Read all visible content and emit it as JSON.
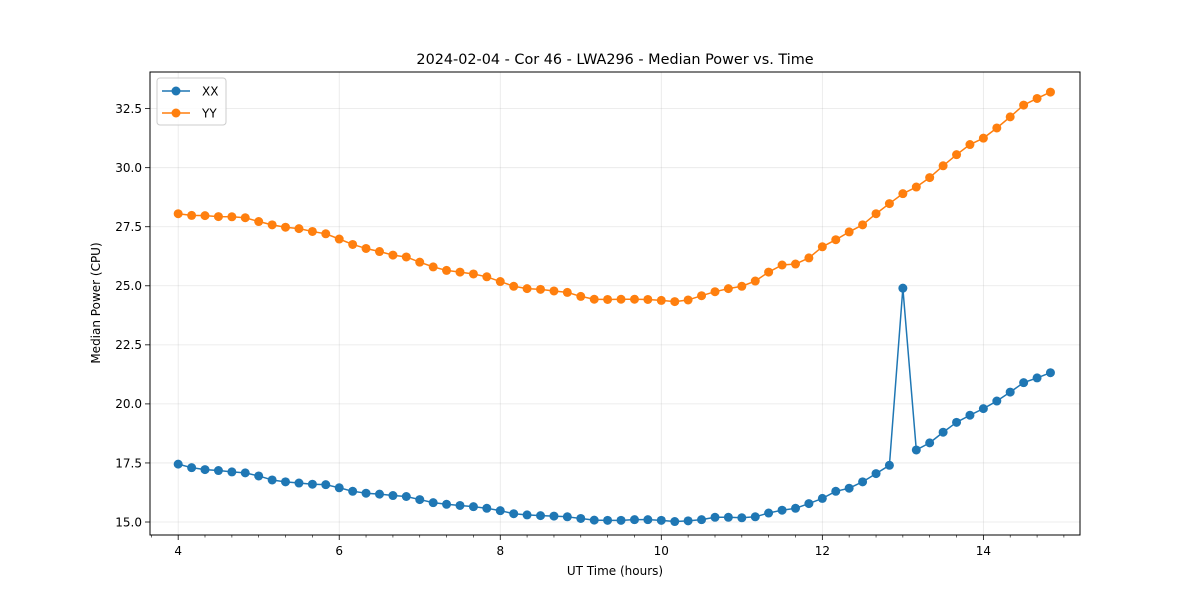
{
  "chart_data": {
    "type": "line",
    "title": "2024-02-04 - Cor 46 - LWA296 - Median Power vs. Time",
    "xlabel": "UT Time (hours)",
    "ylabel": "Median Power (CPU)",
    "xlim": [
      3.65,
      15.2
    ],
    "ylim": [
      14.45,
      34.05
    ],
    "x_ticks": [
      4,
      6,
      8,
      10,
      12,
      14
    ],
    "x_tick_labels": [
      "4",
      "6",
      "8",
      "10",
      "12",
      "14"
    ],
    "x_minor_ticks": [
      3.667,
      4.333,
      4.667,
      5.0,
      5.333,
      5.667,
      6.333,
      6.667,
      7.0,
      7.333,
      7.667,
      8.333,
      8.667,
      9.0,
      9.333,
      9.667,
      10.333,
      10.667,
      11.0,
      11.333,
      11.667,
      12.333,
      12.667,
      13.0,
      13.333,
      13.667,
      14.333,
      14.667,
      15.0
    ],
    "y_ticks": [
      15.0,
      17.5,
      20.0,
      22.5,
      25.0,
      27.5,
      30.0,
      32.5
    ],
    "y_tick_labels": [
      "15.0",
      "17.5",
      "20.0",
      "22.5",
      "25.0",
      "27.5",
      "30.0",
      "32.5"
    ],
    "grid": true,
    "legend_position": "top-left",
    "x": [
      4.0,
      4.167,
      4.333,
      4.5,
      4.667,
      4.833,
      5.0,
      5.167,
      5.333,
      5.5,
      5.667,
      5.833,
      6.0,
      6.167,
      6.333,
      6.5,
      6.667,
      6.833,
      7.0,
      7.167,
      7.333,
      7.5,
      7.667,
      7.833,
      8.0,
      8.167,
      8.333,
      8.5,
      8.667,
      8.833,
      9.0,
      9.167,
      9.333,
      9.5,
      9.667,
      9.833,
      10.0,
      10.167,
      10.333,
      10.5,
      10.667,
      10.833,
      11.0,
      11.167,
      11.333,
      11.5,
      11.667,
      11.833,
      12.0,
      12.167,
      12.333,
      12.5,
      12.667,
      12.833,
      13.0,
      13.167,
      13.333,
      13.5,
      13.667,
      13.833,
      14.0,
      14.167,
      14.333,
      14.5,
      14.667,
      14.833
    ],
    "series": [
      {
        "name": "XX",
        "color": "#1f77b4",
        "values": [
          17.45,
          17.3,
          17.22,
          17.18,
          17.12,
          17.08,
          16.95,
          16.78,
          16.7,
          16.65,
          16.6,
          16.58,
          16.45,
          16.3,
          16.22,
          16.18,
          16.12,
          16.08,
          15.95,
          15.82,
          15.75,
          15.7,
          15.65,
          15.58,
          15.48,
          15.35,
          15.3,
          15.27,
          15.25,
          15.22,
          15.15,
          15.08,
          15.07,
          15.07,
          15.1,
          15.1,
          15.07,
          15.02,
          15.05,
          15.1,
          15.2,
          15.2,
          15.18,
          15.22,
          15.38,
          15.5,
          15.58,
          15.78,
          16.0,
          16.3,
          16.43,
          16.7,
          17.05,
          17.4,
          24.9,
          18.05,
          18.35,
          18.8,
          19.22,
          19.52,
          19.8,
          20.12,
          20.5,
          20.9,
          21.1,
          21.32
        ]
      },
      {
        "name": "YY",
        "color": "#ff7f0e",
        "values": [
          28.05,
          27.98,
          27.97,
          27.93,
          27.92,
          27.88,
          27.72,
          27.58,
          27.48,
          27.42,
          27.3,
          27.2,
          26.98,
          26.75,
          26.58,
          26.45,
          26.3,
          26.22,
          26.0,
          25.8,
          25.65,
          25.58,
          25.5,
          25.38,
          25.18,
          24.98,
          24.88,
          24.85,
          24.78,
          24.72,
          24.55,
          24.43,
          24.42,
          24.43,
          24.43,
          24.42,
          24.38,
          24.33,
          24.4,
          24.58,
          24.75,
          24.88,
          24.98,
          25.2,
          25.58,
          25.88,
          25.92,
          26.18,
          26.65,
          26.95,
          27.28,
          27.58,
          28.05,
          28.48,
          28.9,
          29.18,
          29.58,
          30.08,
          30.55,
          30.98,
          31.25,
          31.68,
          32.15,
          32.65,
          32.93,
          33.2
        ]
      }
    ]
  }
}
